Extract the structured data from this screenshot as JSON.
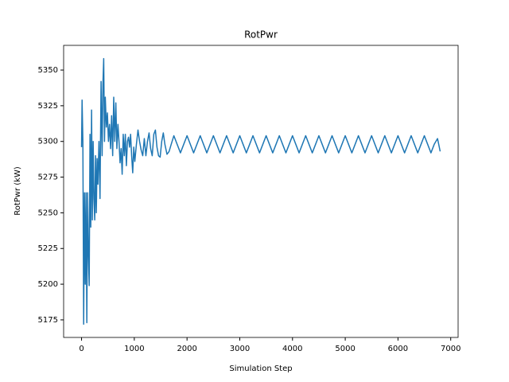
{
  "chart_data": {
    "type": "line",
    "title": "RotPwr",
    "xlabel": "Simulation Step",
    "ylabel": "RotPwr (kW)",
    "series": [
      {
        "name": "RotPwr",
        "color": "#1f77b4",
        "x": [
          0,
          10,
          25,
          40,
          55,
          70,
          85,
          100,
          115,
          130,
          145,
          160,
          175,
          190,
          205,
          220,
          235,
          250,
          265,
          280,
          295,
          310,
          330,
          350,
          370,
          390,
          405,
          420,
          435,
          450,
          470,
          490,
          510,
          530,
          550,
          570,
          590,
          610,
          630,
          650,
          670,
          690,
          710,
          730,
          750,
          770,
          790,
          810,
          830,
          850,
          870,
          890,
          910,
          930,
          950,
          970,
          990,
          1010,
          1040,
          1070,
          1100,
          1130,
          1160,
          1190,
          1220,
          1250,
          1280,
          1310,
          1340,
          1370,
          1400,
          1430,
          1460,
          1490,
          1520,
          1550,
          1580,
          1620,
          1660,
          1700,
          1750,
          1812.5,
          1875,
          1937.5,
          2000,
          2062.5,
          2125,
          2187.5,
          2250,
          2312.5,
          2375,
          2437.5,
          2500,
          2562.5,
          2625,
          2687.5,
          2750,
          2812.5,
          2875,
          2937.5,
          3000,
          3062.5,
          3125,
          3187.5,
          3250,
          3312.5,
          3375,
          3437.5,
          3500,
          3562.5,
          3625,
          3687.5,
          3750,
          3812.5,
          3875,
          3937.5,
          4000,
          4062.5,
          4125,
          4187.5,
          4250,
          4312.5,
          4375,
          4437.5,
          4500,
          4562.5,
          4625,
          4687.5,
          4750,
          4812.5,
          4875,
          4937.5,
          5000,
          5062.5,
          5125,
          5187.5,
          5250,
          5312.5,
          5375,
          5437.5,
          5500,
          5562.5,
          5625,
          5687.5,
          5750,
          5812.5,
          5875,
          5937.5,
          6000,
          6062.5,
          6125,
          6187.5,
          6250,
          6312.5,
          6375,
          6437.5,
          6500,
          6562.5,
          6625,
          6687.5,
          6750,
          6800
        ],
        "values": [
          5296,
          5329,
          5300,
          5172,
          5264,
          5200,
          5264,
          5173,
          5264,
          5220,
          5199,
          5305,
          5240,
          5322,
          5245,
          5300,
          5260,
          5245,
          5290,
          5250,
          5288,
          5270,
          5300,
          5260,
          5342,
          5290,
          5340,
          5358,
          5300,
          5331,
          5310,
          5320,
          5300,
          5312,
          5295,
          5318,
          5290,
          5331,
          5300,
          5327,
          5295,
          5312,
          5300,
          5285,
          5295,
          5277,
          5305,
          5290,
          5305,
          5283,
          5300,
          5303,
          5296,
          5305,
          5290,
          5278,
          5296,
          5286,
          5298,
          5308,
          5300,
          5294,
          5290,
          5302,
          5290,
          5300,
          5306,
          5295,
          5290,
          5305,
          5308,
          5296,
          5290,
          5289,
          5300,
          5306,
          5298,
          5291,
          5293,
          5298,
          5304,
          5298,
          5292,
          5298,
          5304,
          5298,
          5292,
          5298,
          5304,
          5298,
          5292,
          5298,
          5304,
          5298,
          5292,
          5298,
          5304,
          5298,
          5292,
          5298,
          5304,
          5298,
          5292,
          5298,
          5304,
          5298,
          5292,
          5298,
          5304,
          5298,
          5292,
          5298,
          5304,
          5298,
          5292,
          5298,
          5304,
          5298,
          5292,
          5298,
          5304,
          5298,
          5292,
          5298,
          5304,
          5298,
          5292,
          5298,
          5304,
          5298,
          5292,
          5298,
          5304,
          5298,
          5292,
          5298,
          5304,
          5298,
          5292,
          5298,
          5304,
          5298,
          5292,
          5298,
          5304,
          5298,
          5292,
          5298,
          5304,
          5298,
          5292,
          5298,
          5304,
          5298,
          5292,
          5298,
          5304,
          5298,
          5292,
          5298,
          5302,
          5293
        ]
      }
    ],
    "xlim": [
      -340,
      7140
    ],
    "xticks": [
      0,
      1000,
      2000,
      3000,
      4000,
      5000,
      6000,
      7000
    ],
    "ylim": [
      5162.7,
      5367.3
    ],
    "yticks": [
      5175,
      5200,
      5225,
      5250,
      5275,
      5300,
      5325,
      5350
    ]
  }
}
